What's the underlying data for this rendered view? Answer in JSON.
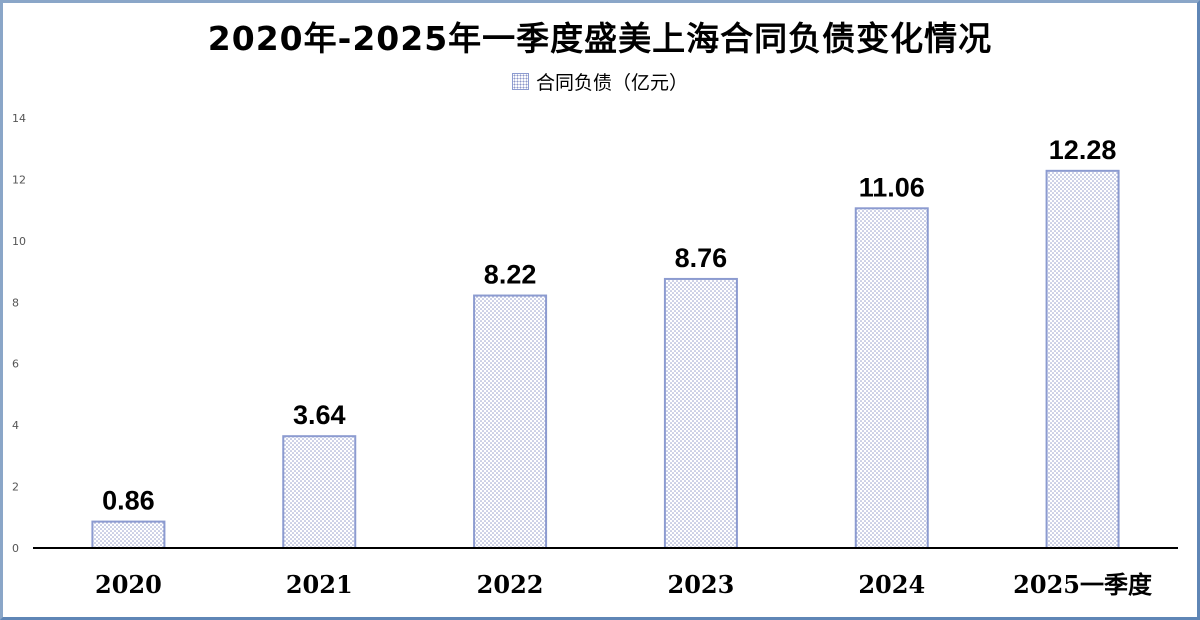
{
  "chart_data": {
    "type": "bar",
    "title": "2020年-2025年一季度盛美上海合同负债变化情况",
    "legend": "合同负债（亿元）",
    "categories": [
      "2020",
      "2021",
      "2022",
      "2023",
      "2024",
      "2025一季度"
    ],
    "series": [
      {
        "name": "合同负债（亿元）",
        "values": [
          0.86,
          3.64,
          8.22,
          8.76,
          11.06,
          12.28
        ]
      }
    ],
    "value_labels": [
      "0.86",
      "3.64",
      "8.22",
      "8.76",
      "11.06",
      "12.28"
    ],
    "y_ticks": [
      "0",
      "2",
      "4",
      "6",
      "8",
      "10",
      "12",
      "14"
    ],
    "ylim": [
      0,
      14
    ],
    "grid": false,
    "legend_position": "top-center",
    "colors": {
      "bar_border": "#8c9bd0",
      "bar_dots": "#8d97c9",
      "frame": "#8aa6c8",
      "axis": "#000000"
    }
  }
}
